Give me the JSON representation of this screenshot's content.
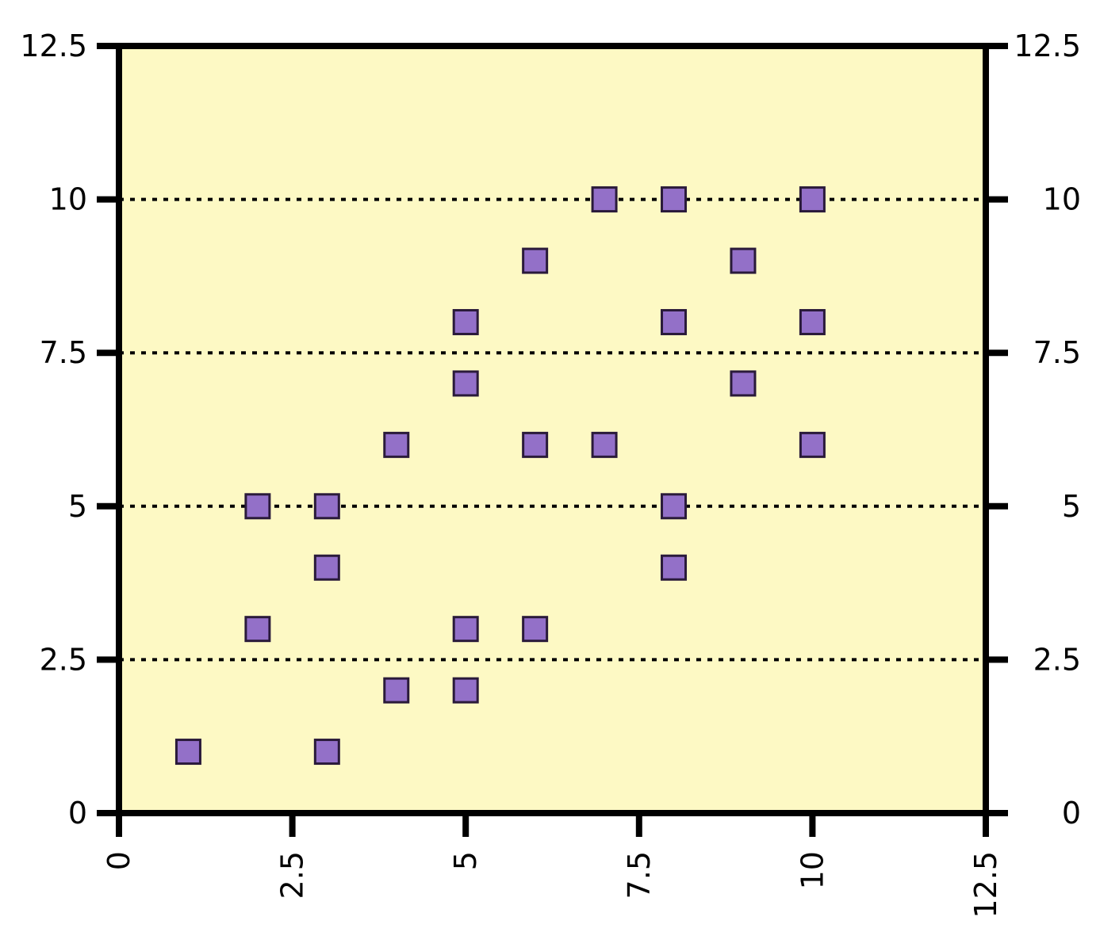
{
  "chart_data": {
    "type": "scatter",
    "title": "",
    "xlabel": "",
    "ylabel": "",
    "xlim": [
      0,
      12.5
    ],
    "ylim": [
      0,
      12.5
    ],
    "x_ticks": [
      "0",
      "2.5",
      "5",
      "7.5",
      "10",
      "12.5"
    ],
    "y_ticks": [
      "0",
      "2.5",
      "5",
      "7.5",
      "10",
      "12.5"
    ],
    "x_tick_values": [
      0,
      2.5,
      5,
      7.5,
      10,
      12.5
    ],
    "y_tick_values": [
      0,
      2.5,
      5,
      7.5,
      10,
      12.5
    ],
    "gridlines_y": [
      2.5,
      5,
      7.5,
      10
    ],
    "grid": "horizontal dotted",
    "secondary_y_axis": "right, same scale",
    "x_tick_labels_rotated": true,
    "marker": "square",
    "series": [
      {
        "points": [
          {
            "x": 1,
            "y": 1
          },
          {
            "x": 3,
            "y": 1
          },
          {
            "x": 4,
            "y": 2
          },
          {
            "x": 5,
            "y": 2
          },
          {
            "x": 2,
            "y": 3
          },
          {
            "x": 5,
            "y": 3
          },
          {
            "x": 6,
            "y": 3
          },
          {
            "x": 3,
            "y": 4
          },
          {
            "x": 8,
            "y": 4
          },
          {
            "x": 2,
            "y": 5
          },
          {
            "x": 3,
            "y": 5
          },
          {
            "x": 8,
            "y": 5
          },
          {
            "x": 4,
            "y": 6
          },
          {
            "x": 6,
            "y": 6
          },
          {
            "x": 7,
            "y": 6
          },
          {
            "x": 10,
            "y": 6
          },
          {
            "x": 5,
            "y": 7
          },
          {
            "x": 9,
            "y": 7
          },
          {
            "x": 5,
            "y": 8
          },
          {
            "x": 8,
            "y": 8
          },
          {
            "x": 10,
            "y": 8
          },
          {
            "x": 6,
            "y": 9
          },
          {
            "x": 9,
            "y": 9
          },
          {
            "x": 7,
            "y": 10
          },
          {
            "x": 8,
            "y": 10
          },
          {
            "x": 10,
            "y": 10
          }
        ]
      }
    ],
    "colors": {
      "plot_background": "#fdf9c4",
      "marker_fill": "#9370c8",
      "marker_stroke": "#2a1a3a",
      "axis": "#000000",
      "grid": "#000000"
    }
  }
}
